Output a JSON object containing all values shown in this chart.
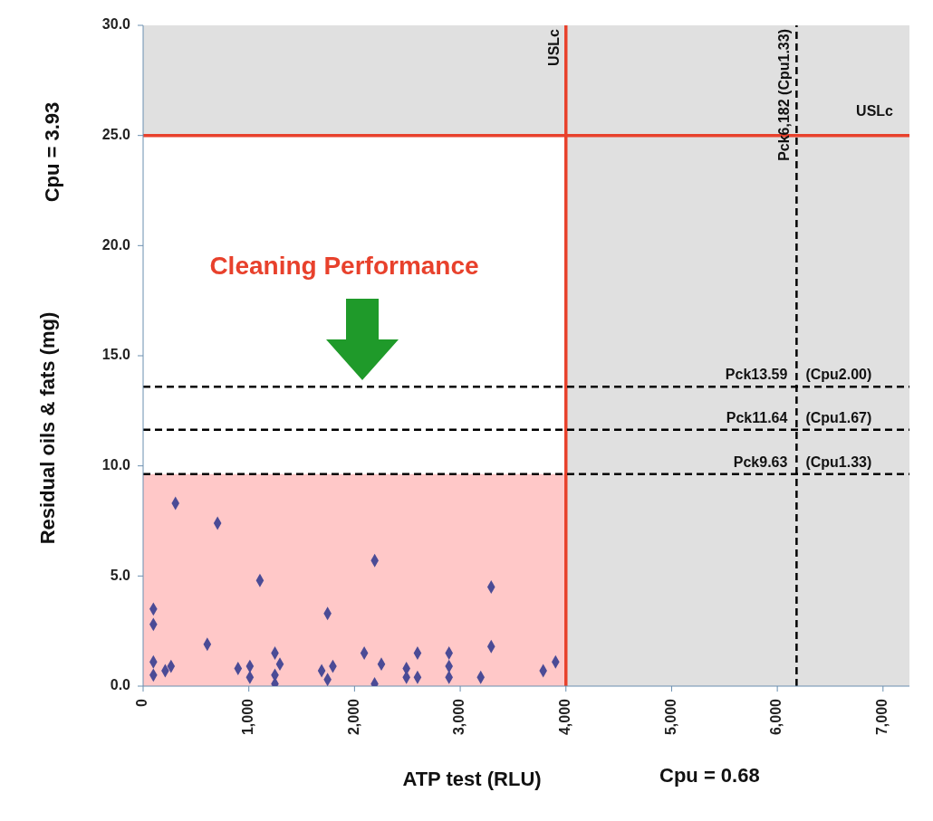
{
  "chart_data": {
    "type": "scatter",
    "xlabel": "ATP test (RLU)",
    "ylabel": "Residual oils & fats (mg)",
    "annotations": [
      "Cleaning Performance",
      "Cpu = 3.93",
      "Cpu = 0.68"
    ],
    "x": [
      306,
      704,
      1105,
      2191,
      3293,
      97,
      97,
      1745,
      607,
      3293,
      97,
      97,
      209,
      264,
      898,
      1010,
      1010,
      1247,
      1294,
      1247,
      1247,
      1689,
      1795,
      1745,
      2092,
      2254,
      2190,
      2491,
      2596,
      2491,
      2596,
      2894,
      2894,
      2894,
      3194,
      3785,
      3902
    ],
    "series": [
      {
        "color": "#4b4b96",
        "values": [
          8.3,
          7.4,
          4.8,
          5.7,
          4.5,
          3.5,
          2.8,
          3.3,
          1.9,
          1.8,
          1.1,
          0.5,
          0.7,
          0.9,
          0.8,
          0.9,
          0.4,
          1.5,
          1.0,
          0.5,
          0.1,
          0.7,
          0.9,
          0.3,
          1.5,
          1.0,
          0.1,
          0.8,
          1.5,
          0.4,
          0.4,
          1.5,
          0.9,
          0.4,
          0.4,
          0.7,
          1.1
        ]
      }
    ],
    "xlim": [
      0,
      7250
    ],
    "ylim": [
      0,
      30
    ],
    "xticks": [
      0,
      {
        "value": 1000,
        "label": "1,000"
      },
      {
        "value": 2000,
        "label": "2,000"
      },
      {
        "value": 3000,
        "label": "3,000"
      },
      {
        "value": 4000,
        "label": "4,000"
      },
      {
        "value": 5000,
        "label": "5,000"
      },
      {
        "value": 6000,
        "label": "6,000"
      },
      {
        "value": 7000,
        "label": "7,000"
      }
    ],
    "yticks": [
      {
        "value": 0,
        "label": "0.0"
      },
      {
        "value": 5,
        "label": "5.0"
      },
      {
        "value": 10,
        "label": "10.0"
      },
      {
        "value": 15,
        "label": "15.0"
      },
      {
        "value": 20,
        "label": "20.0"
      },
      {
        "value": 25,
        "label": "25.0"
      },
      {
        "value": 30,
        "label": "30.0"
      }
    ],
    "bands": [
      {
        "axis": "y",
        "from": 0,
        "to": 9.63,
        "color": "#ffc8c8"
      },
      {
        "axis": "x",
        "from": 4000,
        "to": 7250,
        "color": "#e0e0e0"
      },
      {
        "axis": "y",
        "from": 25,
        "to": 30,
        "color": "#e0e0e0"
      }
    ],
    "ref_lines": [
      {
        "axis": "y",
        "value": 25,
        "label": "USLc",
        "color": "#e8412c",
        "line_style": "solid"
      },
      {
        "axis": "x",
        "value": 4000,
        "label": "USLc",
        "color": "#e8412c",
        "line_style": "solid"
      },
      {
        "axis": "x",
        "value": 6182,
        "label": "Pck6,182 (Cpu1.33)",
        "color": "#000000",
        "line_style": "dashed"
      },
      {
        "axis": "y",
        "value": 13.59,
        "label": "Pck13.59 (Cpu2.00)",
        "color": "#000000",
        "line_style": "dashed"
      },
      {
        "axis": "y",
        "value": 11.64,
        "label": "Pck11.64 (Cpu1.67)",
        "color": "#000000",
        "line_style": "dashed"
      },
      {
        "axis": "y",
        "value": 9.63,
        "label": "Pck9.63 (Cpu1.33)",
        "color": "#000000",
        "line_style": "dashed"
      }
    ],
    "grid": false,
    "legend": false,
    "marker": "diamond"
  }
}
